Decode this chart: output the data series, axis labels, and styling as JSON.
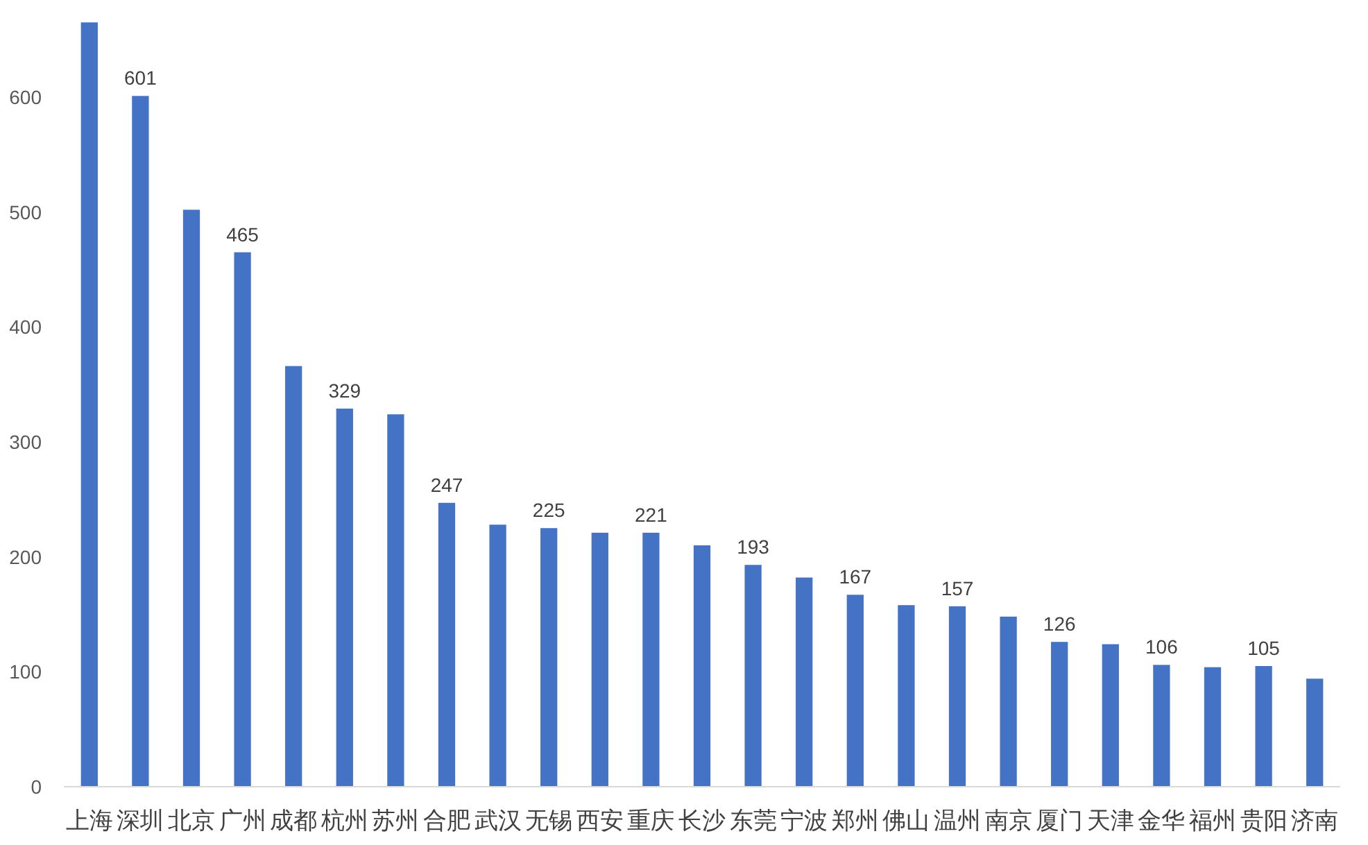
{
  "chart_data": {
    "type": "bar",
    "categories": [
      "上海",
      "深圳",
      "北京",
      "广州",
      "成都",
      "杭州",
      "苏州",
      "合肥",
      "武汉",
      "无锡",
      "西安",
      "重庆",
      "长沙",
      "东莞",
      "宁波",
      "郑州",
      "佛山",
      "温州",
      "南京",
      "厦门",
      "天津",
      "金华",
      "福州",
      "贵阳",
      "济南"
    ],
    "values": [
      665,
      601,
      502,
      465,
      366,
      329,
      324,
      247,
      228,
      225,
      221,
      221,
      210,
      193,
      182,
      167,
      158,
      157,
      148,
      126,
      124,
      106,
      104,
      105,
      94
    ],
    "value_labels": [
      null,
      "601",
      null,
      "465",
      null,
      "329",
      null,
      "247",
      null,
      "225",
      null,
      "221",
      null,
      "193",
      null,
      "167",
      null,
      "157",
      null,
      "126",
      null,
      "106",
      null,
      "105",
      null
    ],
    "color": "#4472c4",
    "ylim": [
      0,
      670
    ],
    "yticks": [
      0,
      100,
      200,
      300,
      400,
      500,
      600
    ]
  }
}
